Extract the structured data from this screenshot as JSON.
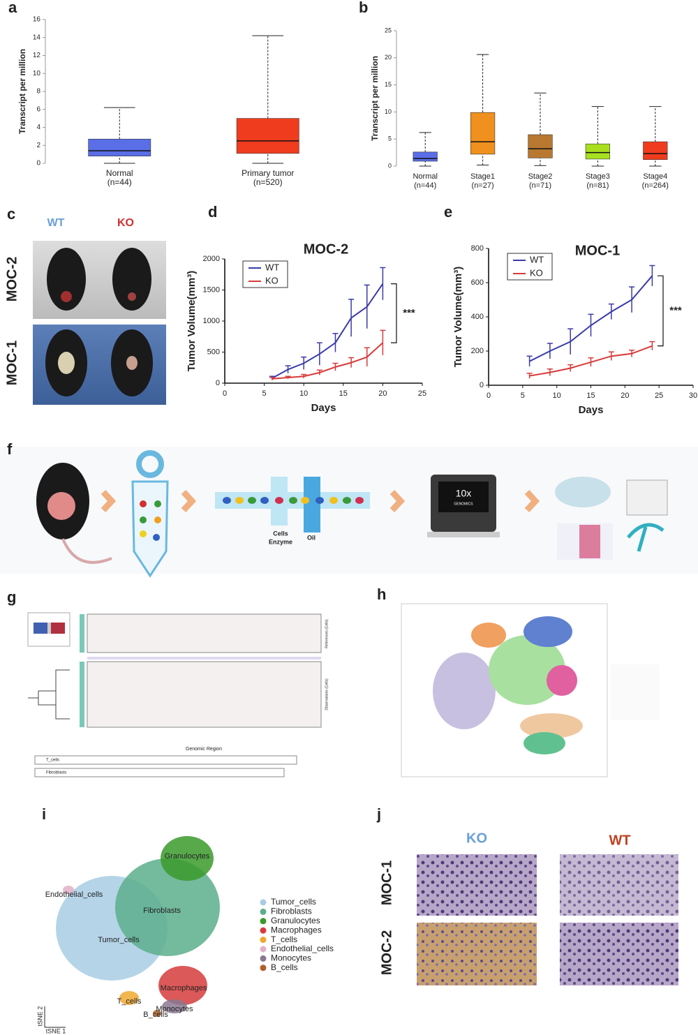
{
  "panel_labels": [
    "a",
    "b",
    "c",
    "d",
    "e",
    "f",
    "g",
    "h",
    "i",
    "j"
  ],
  "chart_data": [
    {
      "type": "box",
      "y_label": "Transcript per million",
      "categories": [
        "Normal",
        "Primary tumor"
      ],
      "category_counts": [
        "(n=44)",
        "(n=520)"
      ],
      "colors": [
        "#5a6ee8",
        "#f03c1e"
      ],
      "min": [
        0,
        0
      ],
      "q1": [
        0.8,
        1.1
      ],
      "median": [
        1.4,
        2.5
      ],
      "q3": [
        2.7,
        5.0
      ],
      "max": [
        6.2,
        14.2
      ],
      "ylim": [
        0,
        16
      ],
      "yticks": [
        0,
        2,
        4,
        6,
        8,
        10,
        12,
        14,
        16
      ]
    },
    {
      "type": "box",
      "y_label": "Transcript per million",
      "categories": [
        "Normal",
        "Stage1",
        "Stage2",
        "Stage3",
        "Stage4"
      ],
      "category_counts": [
        "(n=44)",
        "(n=27)",
        "(n=71)",
        "(n=81)",
        "(n=264)"
      ],
      "colors": [
        "#5a6ee8",
        "#f0901e",
        "#b87830",
        "#a8e020",
        "#f03c1e"
      ],
      "min": [
        0,
        0.2,
        0.1,
        0,
        0
      ],
      "q1": [
        0.9,
        2.2,
        1.5,
        1.3,
        1.2
      ],
      "median": [
        1.4,
        4.5,
        3.2,
        2.5,
        2.3
      ],
      "q3": [
        2.6,
        9.9,
        5.8,
        4.1,
        4.5
      ],
      "max": [
        6.2,
        20.6,
        13.5,
        11,
        11
      ],
      "ylim": [
        0,
        25
      ],
      "yticks": [
        0,
        5,
        10,
        15,
        20,
        25
      ]
    },
    {
      "type": "line",
      "title": "MOC-2",
      "y_label": "Tumor Volume(mm³)",
      "x_label": "Days",
      "annotation": "***",
      "x": [
        6,
        8,
        10,
        12,
        14,
        16,
        18,
        20
      ],
      "series": [
        {
          "name": "WT",
          "color": "#3a3aa8",
          "values": [
            80,
            220,
            320,
            470,
            650,
            1050,
            1230,
            1600
          ],
          "errors": [
            30,
            60,
            100,
            180,
            150,
            300,
            350,
            260
          ]
        },
        {
          "name": "KO",
          "color": "#d83a3a",
          "values": [
            70,
            90,
            110,
            170,
            260,
            330,
            420,
            650
          ],
          "errors": [
            20,
            20,
            30,
            40,
            60,
            80,
            150,
            200
          ]
        }
      ],
      "xlim": [
        0,
        25
      ],
      "xticks": [
        0,
        5,
        10,
        15,
        20,
        25
      ],
      "ylim": [
        0,
        2000
      ],
      "yticks": [
        0,
        500,
        1000,
        1500,
        2000
      ]
    },
    {
      "type": "line",
      "title": "MOC-1",
      "y_label": "Tumor Volume(mm³)",
      "x_label": "Days",
      "annotation": "***",
      "x": [
        6,
        9,
        12,
        15,
        18,
        21,
        24
      ],
      "series": [
        {
          "name": "WT",
          "color": "#3a3aa8",
          "values": [
            140,
            200,
            255,
            350,
            430,
            500,
            640
          ],
          "errors": [
            30,
            45,
            75,
            65,
            45,
            75,
            60
          ]
        },
        {
          "name": "KO",
          "color": "#d83a3a",
          "values": [
            55,
            75,
            100,
            135,
            170,
            185,
            230
          ],
          "errors": [
            15,
            20,
            20,
            25,
            25,
            20,
            25
          ]
        }
      ],
      "xlim": [
        0,
        30
      ],
      "xticks": [
        0,
        5,
        10,
        15,
        20,
        25,
        30
      ],
      "ylim": [
        0,
        800
      ],
      "yticks": [
        0,
        200,
        400,
        600,
        800
      ]
    }
  ],
  "panel_c": {
    "columns": [
      "WT",
      "KO"
    ],
    "rows": [
      "MOC-2",
      "MOC-1"
    ]
  },
  "panel_f": {
    "channel_labels": [
      "Cells",
      "Enzyme",
      "Oil"
    ],
    "device": [
      "10x",
      "GENOMICS"
    ]
  },
  "panel_g": {
    "x_label": "Genomic Region",
    "side_labels": [
      "References (Cells)",
      "Observations (Cells)"
    ],
    "groups": [
      "T_cells",
      "Fibroblasts"
    ]
  },
  "panel_i": {
    "legend": [
      {
        "name": "Tumor_cells",
        "color": "#a8cce4"
      },
      {
        "name": "Fibroblasts",
        "color": "#5cae8c"
      },
      {
        "name": "Granulocytes",
        "color": "#3a9a2a"
      },
      {
        "name": "Macrophages",
        "color": "#d63c3c"
      },
      {
        "name": "T_cells",
        "color": "#f0a830"
      },
      {
        "name": "Endothelial_cells",
        "color": "#e0b0c8"
      },
      {
        "name": "Monocytes",
        "color": "#8a7890"
      },
      {
        "name": "B_cells",
        "color": "#b0602a"
      }
    ],
    "cluster_labels": [
      "Granulocytes",
      "Endothelial_cells",
      "Fibroblasts",
      "Tumor_cells",
      "Macrophages",
      "T_cells",
      "Monocytes",
      "B_cells"
    ],
    "axes": [
      "tSNE 2",
      "tSNE 1"
    ]
  },
  "panel_j": {
    "columns": [
      "KO",
      "WT"
    ],
    "rows": [
      "MOC-1",
      "MOC-2"
    ]
  }
}
